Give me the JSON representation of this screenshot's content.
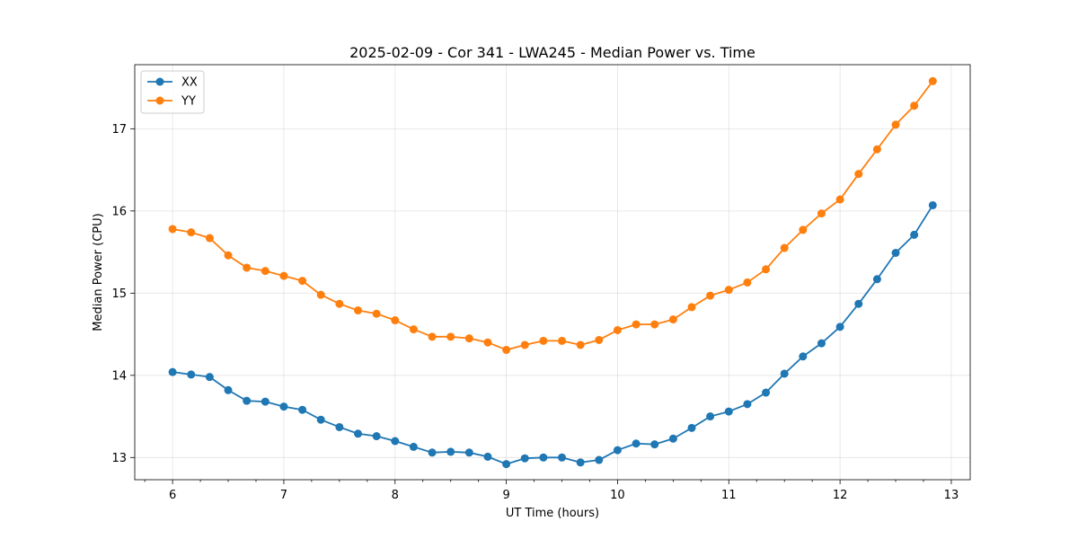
{
  "chart_data": {
    "type": "line",
    "title": "2025-02-09 - Cor 341 - LWA245 - Median Power vs. Time",
    "xlabel": "UT Time (hours)",
    "ylabel": "Median Power (CPU)",
    "xlim": [
      5.66,
      13.17
    ],
    "ylim": [
      12.73,
      17.78
    ],
    "xticks": [
      6,
      7,
      8,
      9,
      10,
      11,
      12,
      13
    ],
    "xtick_labels": [
      "6",
      "7",
      "8",
      "9",
      "10",
      "11",
      "12",
      "13"
    ],
    "xminor_step": 0.25,
    "yticks": [
      13,
      14,
      15,
      16,
      17
    ],
    "ytick_labels": [
      "13",
      "14",
      "15",
      "16",
      "17"
    ],
    "grid": true,
    "legend_position": "top-left",
    "x": [
      6.0,
      6.1667,
      6.3333,
      6.5,
      6.6667,
      6.8333,
      7.0,
      7.1667,
      7.3333,
      7.5,
      7.6667,
      7.8333,
      8.0,
      8.1667,
      8.3333,
      8.5,
      8.6667,
      8.8333,
      9.0,
      9.1667,
      9.3333,
      9.5,
      9.6667,
      9.8333,
      10.0,
      10.1667,
      10.3333,
      10.5,
      10.6667,
      10.8333,
      11.0,
      11.1667,
      11.3333,
      11.5,
      11.6667,
      11.8333,
      12.0,
      12.1667,
      12.3333,
      12.5,
      12.6667,
      12.8333
    ],
    "series": [
      {
        "name": "XX",
        "color": "#1f77b4",
        "values": [
          14.04,
          14.01,
          13.98,
          13.82,
          13.69,
          13.68,
          13.62,
          13.58,
          13.46,
          13.37,
          13.29,
          13.26,
          13.2,
          13.13,
          13.06,
          13.07,
          13.06,
          13.01,
          12.92,
          12.99,
          13.0,
          13.0,
          12.94,
          12.97,
          13.09,
          13.17,
          13.16,
          13.23,
          13.36,
          13.5,
          13.56,
          13.65,
          13.79,
          14.02,
          14.23,
          14.39,
          14.59,
          14.87,
          15.17,
          15.49,
          15.71,
          16.07
        ]
      },
      {
        "name": "YY",
        "color": "#ff7f0e",
        "values": [
          15.78,
          15.74,
          15.67,
          15.46,
          15.31,
          15.27,
          15.21,
          15.15,
          14.98,
          14.87,
          14.79,
          14.75,
          14.67,
          14.56,
          14.47,
          14.47,
          14.45,
          14.4,
          14.31,
          14.37,
          14.42,
          14.42,
          14.37,
          14.43,
          14.55,
          14.62,
          14.62,
          14.68,
          14.83,
          14.97,
          15.04,
          15.13,
          15.29,
          15.55,
          15.77,
          15.97,
          16.14,
          16.45,
          16.75,
          17.05,
          17.28,
          17.58
        ]
      }
    ]
  }
}
